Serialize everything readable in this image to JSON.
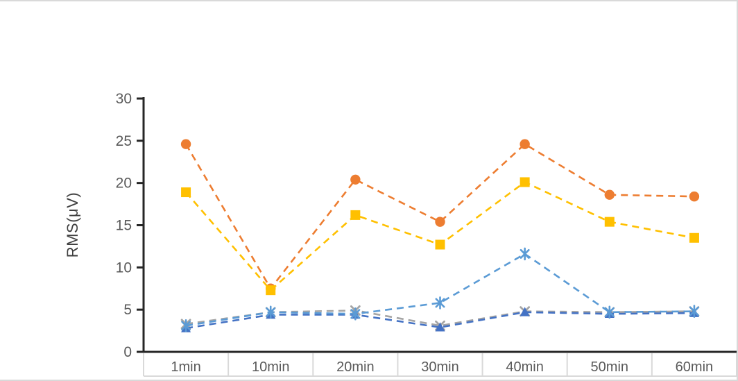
{
  "chart_data": {
    "type": "line",
    "title": "",
    "ylabel": "RMS(μV)",
    "xlabel": "",
    "ylim": [
      0,
      30
    ],
    "yticks": [
      0,
      5,
      10,
      15,
      20,
      25,
      30
    ],
    "categories": [
      "1min",
      "10min",
      "20min",
      "30min",
      "40min",
      "50min",
      "60min"
    ],
    "series": [
      {
        "name": "series-circle-orange",
        "marker": "circle",
        "color": "#ED7D31",
        "values": [
          24.6,
          7.5,
          20.4,
          15.4,
          24.6,
          18.6,
          18.4
        ]
      },
      {
        "name": "series-square-gold",
        "marker": "square",
        "color": "#FFC000",
        "values": [
          18.9,
          7.3,
          16.2,
          12.7,
          20.1,
          15.4,
          13.5
        ]
      },
      {
        "name": "series-x-gray",
        "marker": "x",
        "color": "#A5A5A5",
        "values": [
          3.3,
          4.7,
          4.9,
          3.1,
          4.8,
          4.7,
          4.8
        ]
      },
      {
        "name": "series-triangle-blue",
        "marker": "triangle",
        "color": "#4472C4",
        "values": [
          2.8,
          4.4,
          4.4,
          2.9,
          4.7,
          4.5,
          4.6
        ]
      },
      {
        "name": "series-asterisk-lightblue",
        "marker": "asterisk",
        "color": "#5B9BD5",
        "values": [
          3.1,
          4.7,
          4.5,
          5.8,
          11.6,
          4.7,
          4.8
        ]
      }
    ],
    "line_style": "dashed",
    "grid": false,
    "legend_position": "none",
    "colors": {
      "axis": "#262626",
      "tick_label": "#595959",
      "category_label": "#595959",
      "axis_title": "#404040",
      "cell_border": "#d9d9d9"
    }
  }
}
